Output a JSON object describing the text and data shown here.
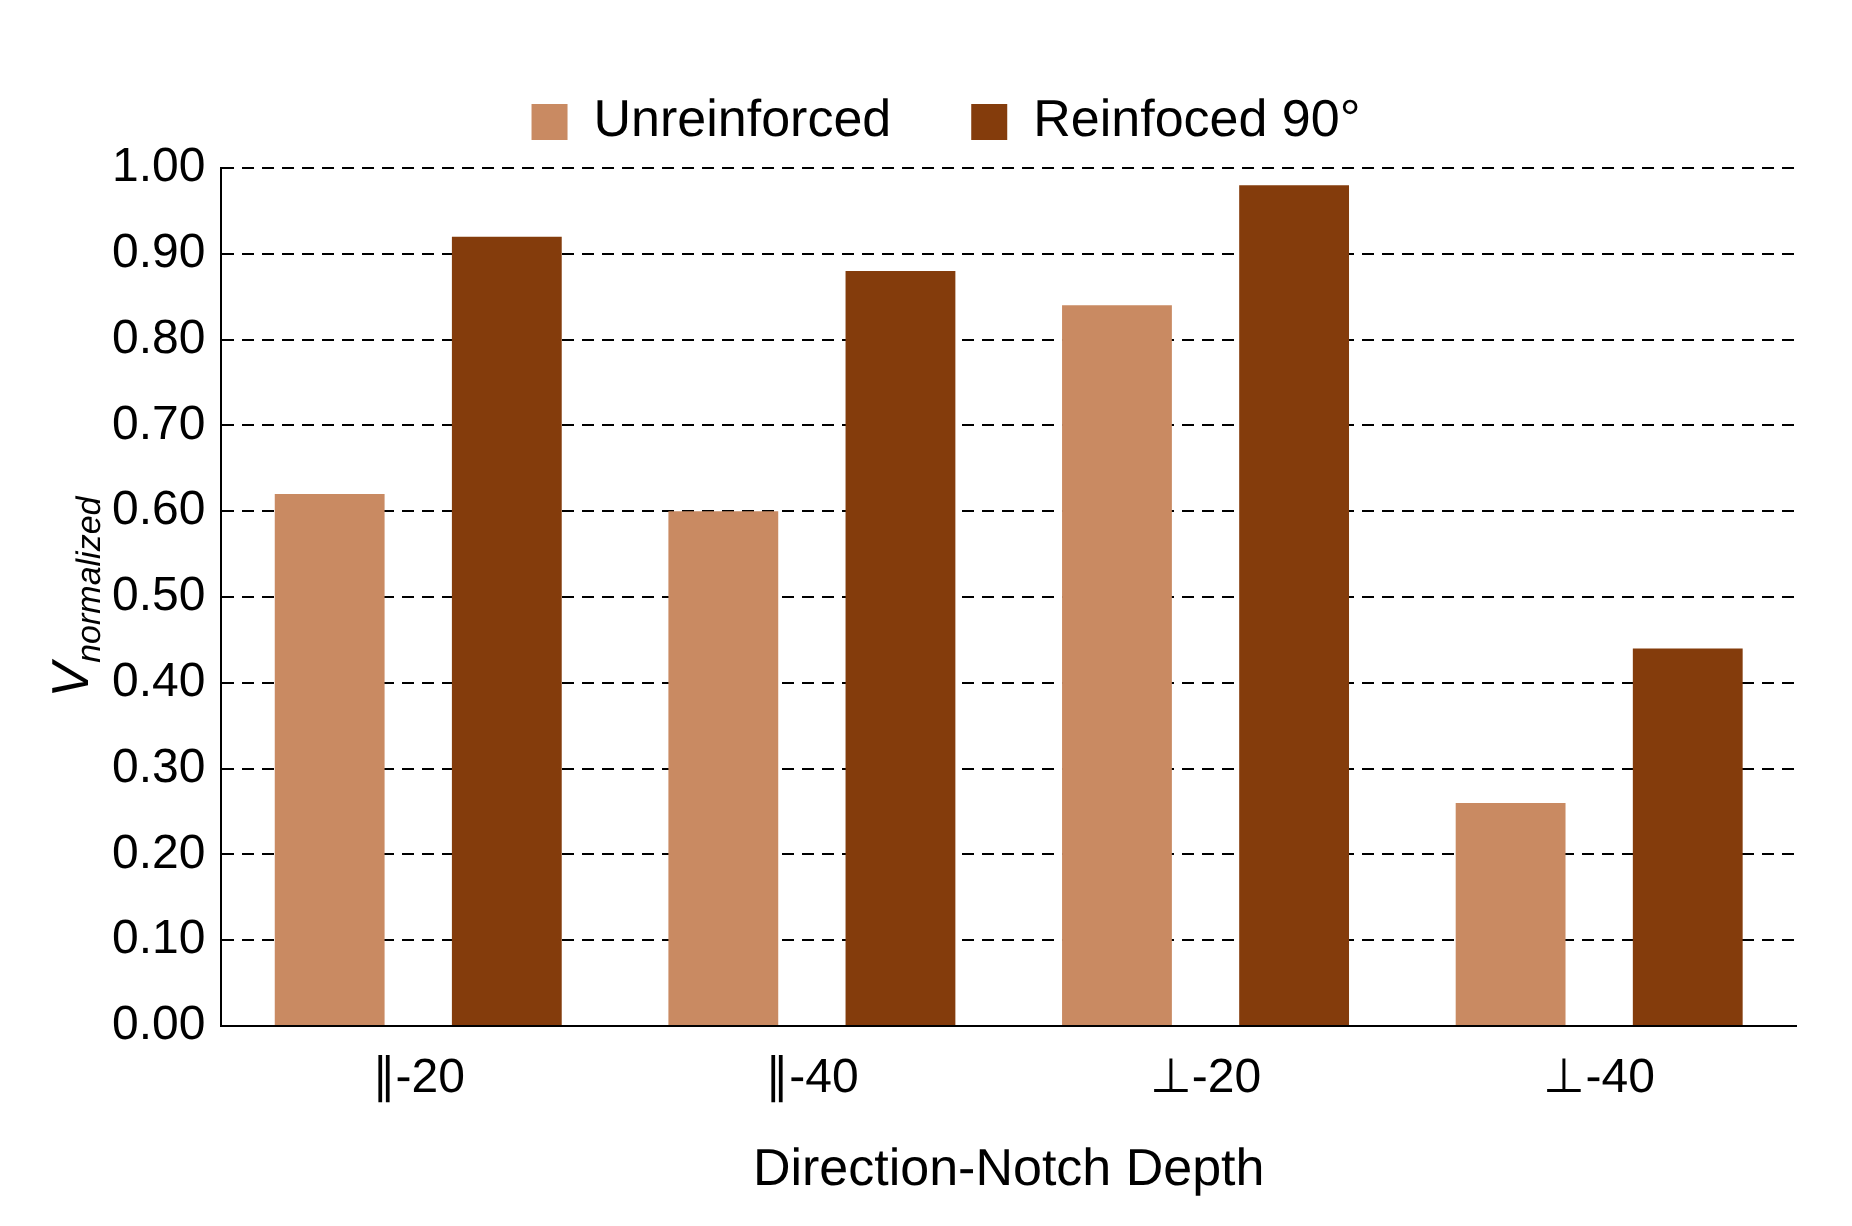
{
  "chart_data": {
    "type": "bar",
    "xlabel": "Direction-Notch Depth",
    "ylabel": "V$_{normalized}$",
    "categories": [
      "∥-20",
      "∥-40",
      "⊥-20",
      "⊥-40"
    ],
    "series": [
      {
        "name": "Unreinforced",
        "color": "#c98a62",
        "values": [
          0.62,
          0.6,
          0.84,
          0.26
        ]
      },
      {
        "name": "Reinfoced 90°",
        "color": "#843c0c",
        "values": [
          0.92,
          0.88,
          0.98,
          0.44
        ]
      }
    ],
    "ylim": [
      0,
      1
    ],
    "yticks": [
      {
        "value": 0,
        "label": "0.00"
      },
      {
        "value": 0.1,
        "label": "0.10"
      },
      {
        "value": 0.2,
        "label": "0.20"
      },
      {
        "value": 0.3,
        "label": "0.30"
      },
      {
        "value": 0.4,
        "label": "0.40"
      },
      {
        "value": 0.5,
        "label": "0.50"
      },
      {
        "value": 0.6,
        "label": "0.60"
      },
      {
        "value": 0.7,
        "label": "0.70"
      },
      {
        "value": 0.8,
        "label": "0.80"
      },
      {
        "value": 0.9,
        "label": "0.90"
      },
      {
        "value": 1,
        "label": "1.00"
      }
    ],
    "grid": "y",
    "legend": "top"
  }
}
